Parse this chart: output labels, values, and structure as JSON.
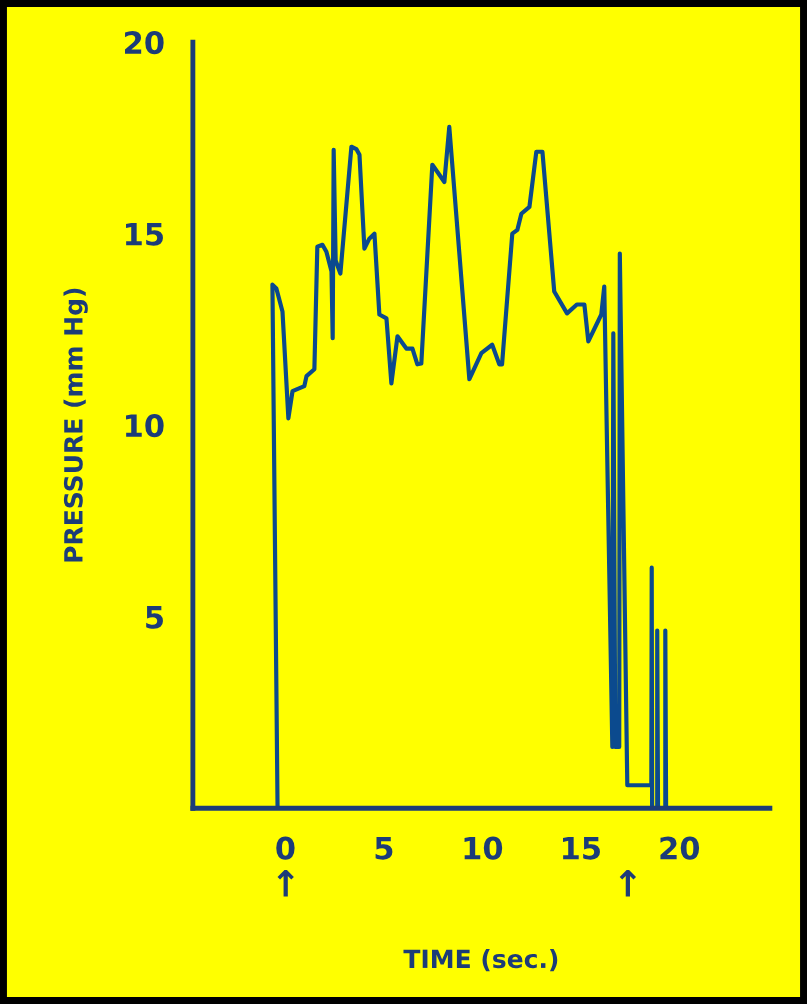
{
  "chart_data": {
    "type": "line",
    "xlabel": "TIME (sec.)",
    "ylabel": "PRESSURE (mm Hg)",
    "series": [
      {
        "color": "#0b4a8e",
        "x": [
          -0.4,
          -0.66,
          -0.46,
          -0.15,
          0.15,
          0.36,
          0.96,
          1.07,
          1.47,
          1.62,
          1.88,
          2.08,
          2.34,
          2.4,
          2.45,
          2.55,
          2.79,
          3.35,
          3.6,
          3.76,
          4.01,
          4.26,
          4.52,
          4.77,
          5.13,
          5.38,
          5.69,
          6.14,
          6.45,
          6.7,
          6.9,
          7.46,
          7.72,
          8.07,
          8.32,
          9.34,
          9.95,
          10.5,
          10.86,
          11.0,
          11.52,
          11.78,
          11.98,
          12.39,
          12.74,
          13.05,
          13.65,
          14.3,
          14.8,
          15.18,
          15.38,
          16.04,
          16.19,
          16.6,
          16.65,
          16.75,
          16.95,
          16.98,
          17.36,
          18.58,
          18.6,
          18.62,
          18.88,
          18.88,
          18.92,
          19.29,
          19.29,
          19.33
        ],
        "values": [
          0,
          13.67,
          13.57,
          12.97,
          10.18,
          10.89,
          11.02,
          11.28,
          11.46,
          14.66,
          14.71,
          14.53,
          14.01,
          12.27,
          17.19,
          14.3,
          13.96,
          17.27,
          17.21,
          17.06,
          14.61,
          14.87,
          15.0,
          12.89,
          12.79,
          11.09,
          12.32,
          12.0,
          12.0,
          11.59,
          11.61,
          16.8,
          16.61,
          16.35,
          17.79,
          11.2,
          11.88,
          12.1,
          11.59,
          11.59,
          15.0,
          15.1,
          15.52,
          15.7,
          17.14,
          17.14,
          13.49,
          12.92,
          13.15,
          13.15,
          12.19,
          12.89,
          13.62,
          1.6,
          12.4,
          1.6,
          1.6,
          14.48,
          0.6,
          0.6,
          6.28,
          0,
          0,
          4.64,
          0,
          0,
          4.64,
          0
        ]
      }
    ],
    "xlim": [
      -4.7,
      24.6
    ],
    "ylim": [
      0,
      20
    ],
    "xticks": [
      0,
      5,
      10,
      15,
      20
    ],
    "yticks": [
      5,
      10,
      15,
      20
    ],
    "annotations": [
      "↑",
      "↑"
    ],
    "grid": false,
    "marker": "none",
    "line_style": "solid"
  }
}
